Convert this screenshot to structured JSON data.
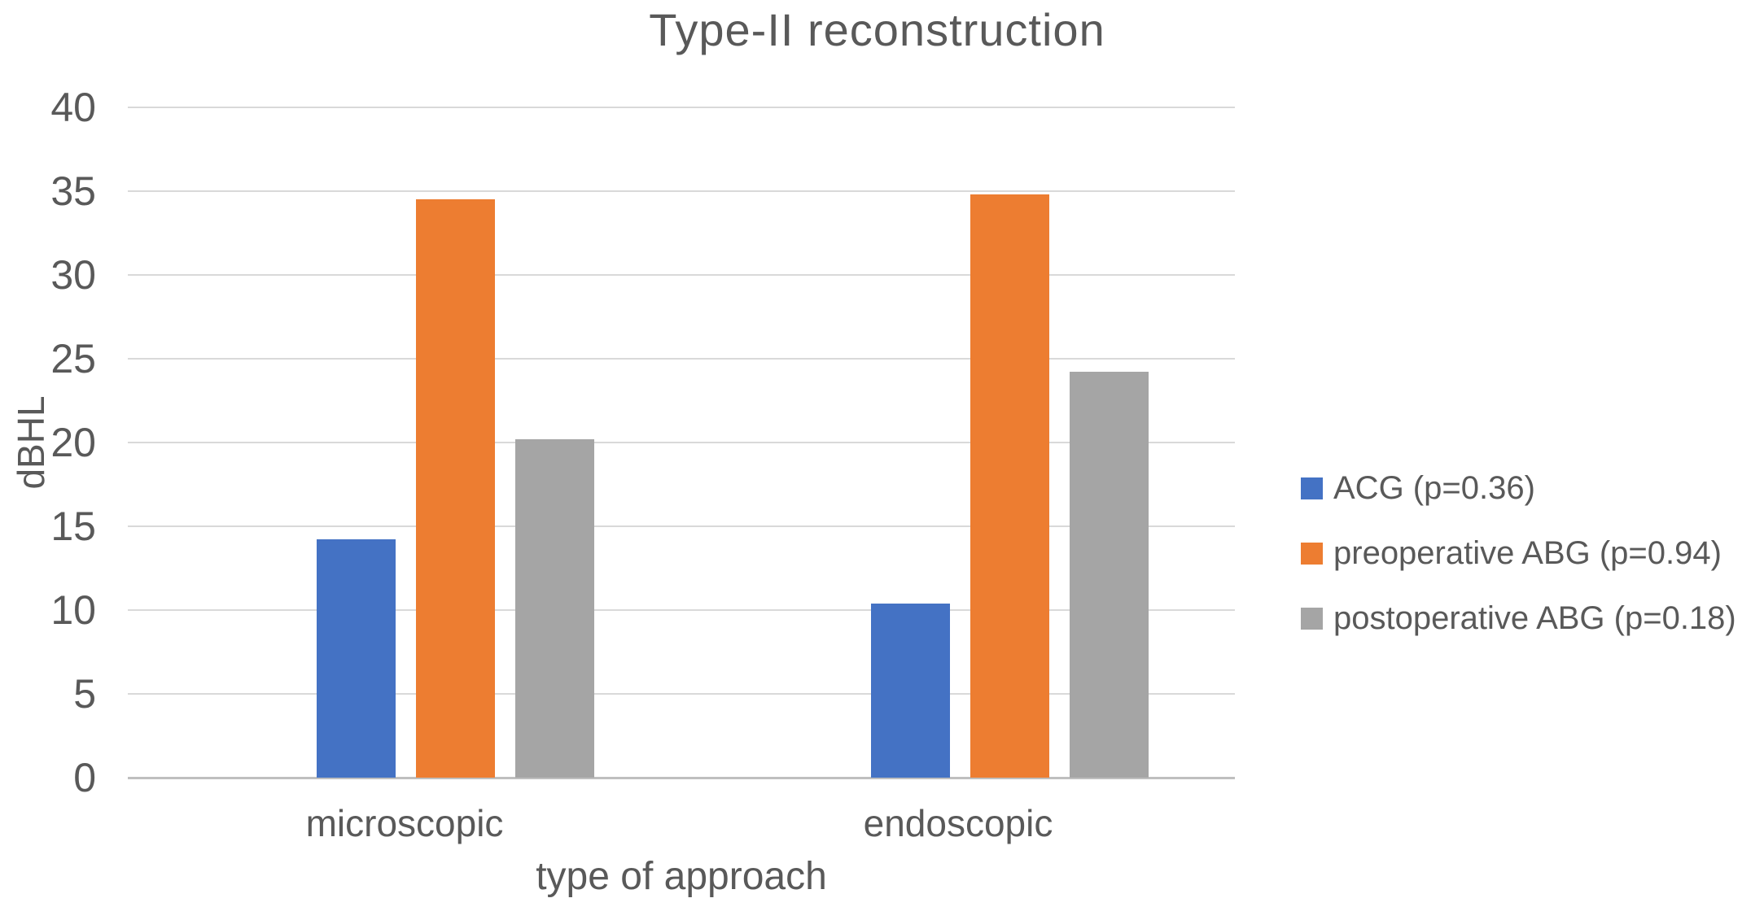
{
  "title": "Type-II reconstruction",
  "y_axis": {
    "label": "dBHL"
  },
  "x_axis": {
    "label": "type of approach"
  },
  "legend": {
    "items": [
      {
        "label": "ACG (p=0.36)",
        "color": "#4472C4"
      },
      {
        "label": "preoperative ABG (p=0.94)",
        "color": "#ED7D31"
      },
      {
        "label": "postoperative ABG (p=0.18)",
        "color": "#A5A5A5"
      }
    ]
  },
  "chart_data": {
    "type": "bar",
    "title": "Type-II reconstruction",
    "xlabel": "type of approach",
    "ylabel": "dBHL",
    "categories": [
      "microscopic",
      "endoscopic"
    ],
    "series": [
      {
        "name": "ACG (p=0.36)",
        "color": "#4472C4",
        "values": [
          14.2,
          10.4
        ]
      },
      {
        "name": "preoperative ABG (p=0.94)",
        "color": "#ED7D31",
        "values": [
          34.5,
          34.8
        ]
      },
      {
        "name": "postoperative ABG (p=0.18)",
        "color": "#A5A5A5",
        "values": [
          20.2,
          24.2
        ]
      }
    ],
    "ylim": [
      0,
      40
    ],
    "yticks": [
      0,
      5,
      10,
      15,
      20,
      25,
      30,
      35,
      40
    ],
    "grid": true,
    "legend_position": "right",
    "colors": {
      "gridline": "#D9D9D9",
      "axis_line": "#BFBFBF",
      "text": "#595959"
    }
  }
}
